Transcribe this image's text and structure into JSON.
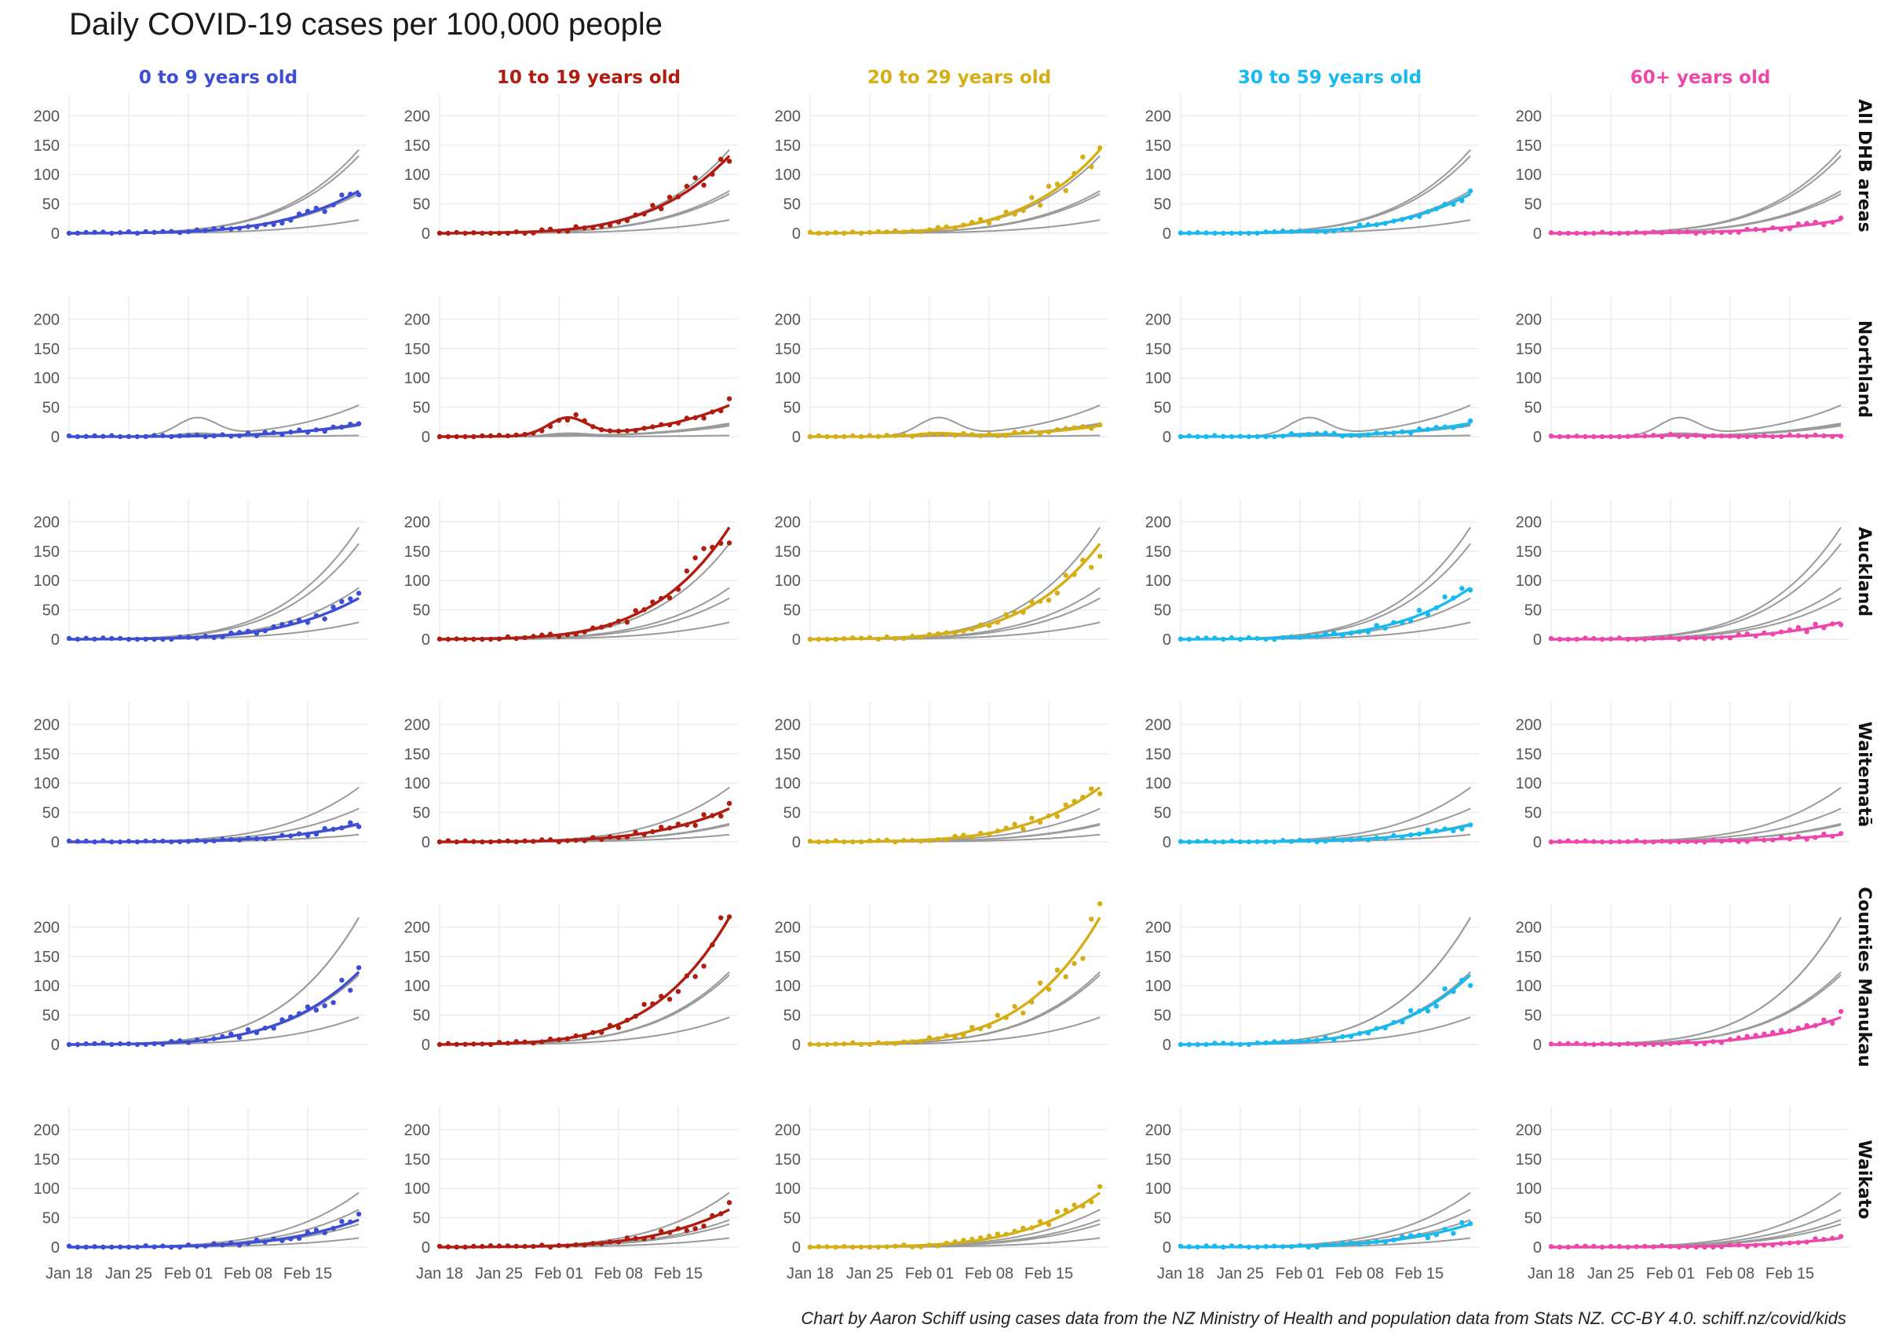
{
  "title": "Daily COVID-19 cases per 100,000 people",
  "caption": "Chart by Aaron Schiff using cases data from the NZ Ministry of Health and population data from Stats NZ. CC-BY 4.0. schiff.nz/covid/kids",
  "chart_data": {
    "type": "line",
    "layout": "small-multiples",
    "x_tick_labels": [
      "Jan 18",
      "Jan 25",
      "Feb 01",
      "Feb 08",
      "Feb 15"
    ],
    "x_range_days": [
      0,
      35
    ],
    "y_tick_labels": [
      "0",
      "50",
      "100",
      "150",
      "200"
    ],
    "y_range": [
      0,
      230
    ],
    "grid": true,
    "age_groups": [
      {
        "label": "0 to 9 years old",
        "color": "#3d4ed4"
      },
      {
        "label": "10 to 19 years old",
        "color": "#b01c10"
      },
      {
        "label": "20 to 29 years old",
        "color": "#d4ae14"
      },
      {
        "label": "30 to 59 years old",
        "color": "#18b9ef"
      },
      {
        "label": "60+ years old",
        "color": "#ee47ac"
      }
    ],
    "background_line_color": "#9a9a9a",
    "regions": [
      {
        "label": "All DHB areas",
        "final_values": [
          70,
          128,
          138,
          65,
          22
        ]
      },
      {
        "label": "Northland",
        "final_values": [
          20,
          52,
          18,
          22,
          2
        ],
        "bump_peak": [
          0,
          30,
          5,
          3,
          2
        ]
      },
      {
        "label": "Auckland",
        "final_values": [
          68,
          185,
          158,
          85,
          28
        ]
      },
      {
        "label": "Waitematā",
        "final_values": [
          30,
          55,
          90,
          28,
          12
        ]
      },
      {
        "label": "Counties Manukau",
        "final_values": [
          120,
          210,
          210,
          115,
          45
        ]
      },
      {
        "label": "Waikato",
        "final_values": [
          45,
          62,
          90,
          38,
          15
        ]
      }
    ]
  }
}
